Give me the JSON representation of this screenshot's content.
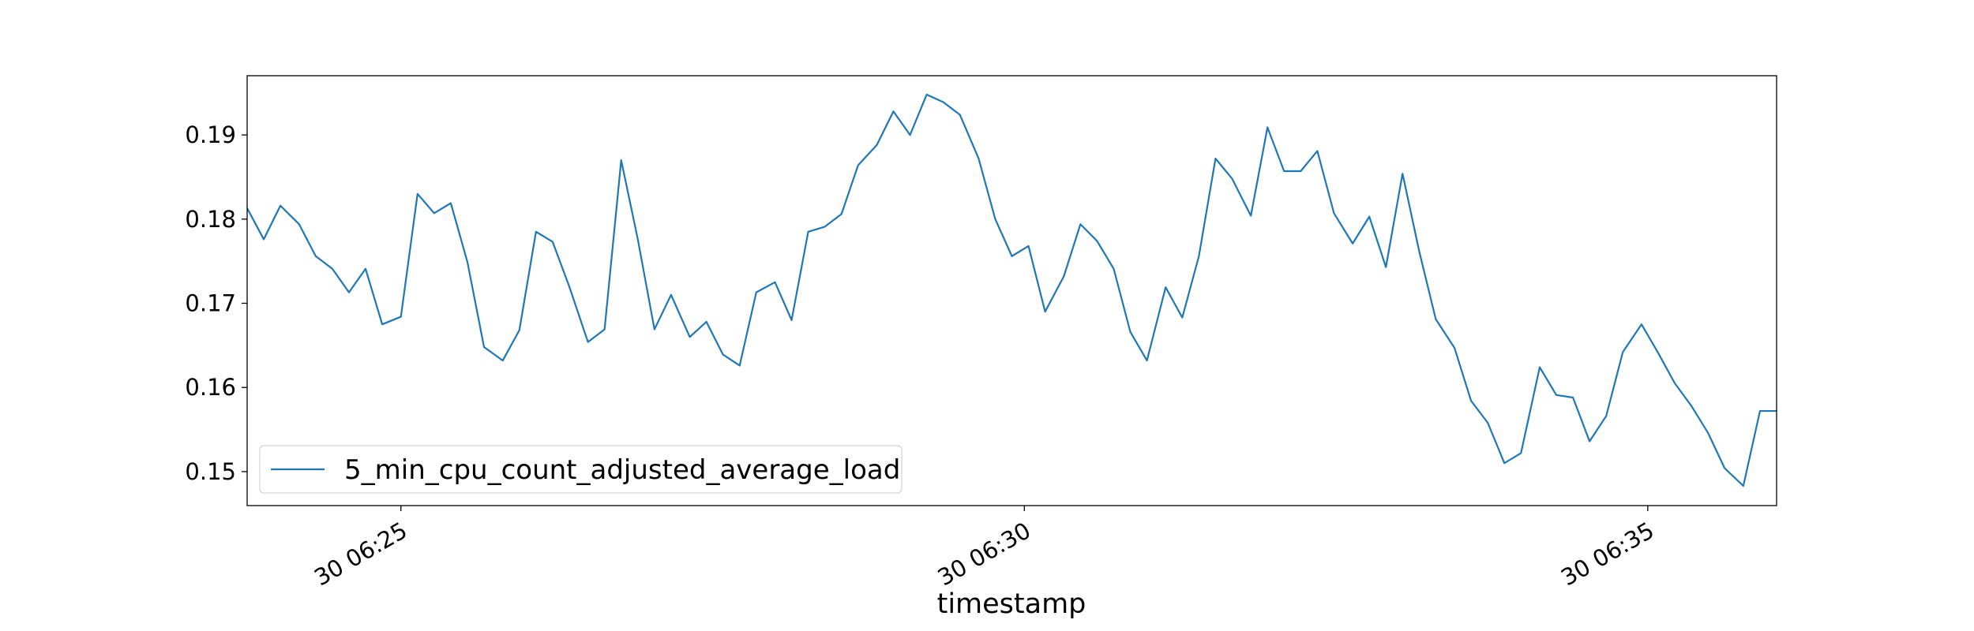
{
  "chart_data": {
    "type": "line",
    "x_label": "timestamp",
    "x": [
      "06:23:46",
      "06:23:54",
      "06:24:02",
      "06:24:11",
      "06:24:19",
      "06:24:27",
      "06:24:35",
      "06:24:43",
      "06:24:51",
      "06:25:00",
      "06:25:08",
      "06:25:16",
      "06:25:24",
      "06:25:32",
      "06:25:40",
      "06:25:49",
      "06:25:57",
      "06:26:05",
      "06:26:13",
      "06:26:21",
      "06:26:30",
      "06:26:38",
      "06:26:46",
      "06:26:54",
      "06:27:02",
      "06:27:10",
      "06:27:19",
      "06:27:27",
      "06:27:35",
      "06:27:43",
      "06:27:51",
      "06:28:00",
      "06:28:08",
      "06:28:16",
      "06:28:24",
      "06:28:32",
      "06:28:40",
      "06:28:49",
      "06:28:57",
      "06:29:05",
      "06:29:13",
      "06:29:21",
      "06:29:29",
      "06:29:38",
      "06:29:46",
      "06:29:54",
      "06:30:02",
      "06:30:10",
      "06:30:19",
      "06:30:27",
      "06:30:35",
      "06:30:43",
      "06:30:51",
      "06:30:59",
      "06:31:08",
      "06:31:16",
      "06:31:24",
      "06:31:32",
      "06:31:40",
      "06:31:49",
      "06:31:57",
      "06:32:05",
      "06:32:13",
      "06:32:21",
      "06:32:29",
      "06:32:38",
      "06:32:46",
      "06:32:54",
      "06:33:02",
      "06:33:10",
      "06:33:18",
      "06:33:27",
      "06:33:35",
      "06:33:43",
      "06:33:51",
      "06:33:59",
      "06:34:08",
      "06:34:16",
      "06:34:24",
      "06:34:32",
      "06:34:40",
      "06:34:48",
      "06:34:57",
      "06:35:05",
      "06:35:13",
      "06:35:21",
      "06:35:29",
      "06:35:37",
      "06:35:46",
      "06:35:54",
      "06:36:02"
    ],
    "series": [
      {
        "name": "5_min_cpu_count_adjusted_average_load",
        "color": "#1f77b4",
        "values": [
          0.1813,
          0.1776,
          0.1816,
          0.1794,
          0.1756,
          0.1741,
          0.1713,
          0.1741,
          0.1675,
          0.1684,
          0.183,
          0.1807,
          0.1819,
          0.1749,
          0.1648,
          0.1632,
          0.1668,
          0.1785,
          0.1773,
          0.172,
          0.1654,
          0.1669,
          0.187,
          0.1776,
          0.1669,
          0.171,
          0.166,
          0.1678,
          0.1639,
          0.1626,
          0.1713,
          0.1725,
          0.168,
          0.1785,
          0.1791,
          0.1806,
          0.1864,
          0.1888,
          0.1928,
          0.19,
          0.1948,
          0.1939,
          0.1924,
          0.1872,
          0.18,
          0.1756,
          0.1768,
          0.169,
          0.1732,
          0.1794,
          0.1774,
          0.1741,
          0.1666,
          0.1632,
          0.1719,
          0.1683,
          0.1756,
          0.1872,
          0.1848,
          0.1804,
          0.1909,
          0.1857,
          0.1857,
          0.1881,
          0.1807,
          0.1771,
          0.1803,
          0.1743,
          0.1854,
          0.1762,
          0.1681,
          0.1647,
          0.1584,
          0.1558,
          0.151,
          0.1522,
          0.1624,
          0.1591,
          0.1588,
          0.1536,
          0.1566,
          0.1642,
          0.1675,
          0.1641,
          0.1605,
          0.1578,
          0.1546,
          0.1504,
          0.1483,
          0.1572,
          0.1572
        ]
      }
    ],
    "xlim": [
      "06:23:46",
      "06:36:02"
    ],
    "xticks": [
      {
        "value": "06:25:00",
        "label": "30 06:25"
      },
      {
        "value": "06:30:00",
        "label": "30 06:30"
      },
      {
        "value": "06:35:00",
        "label": "30 06:35"
      }
    ],
    "ylim": [
      0.14596,
      0.19704
    ],
    "yticks": [
      0.15,
      0.16,
      0.17,
      0.18,
      0.19
    ],
    "grid": false,
    "legend": "lower left"
  }
}
